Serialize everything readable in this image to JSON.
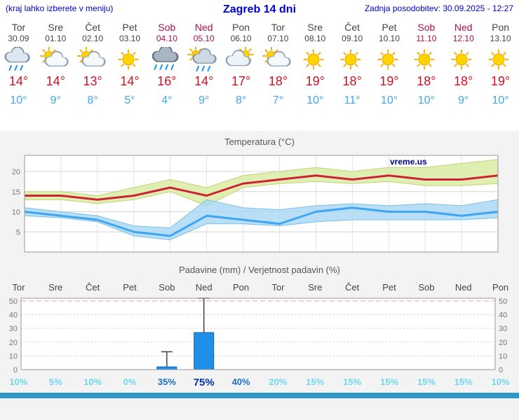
{
  "header": {
    "left": "(kraj lahko izberete v meniju)",
    "title": "Zagreb 14 dni",
    "updated": "Zadnja posodobitev: 30.09.2025 - 12:27"
  },
  "days": [
    {
      "name": "Tor",
      "date": "30.09",
      "weekend": false,
      "icon": "rain",
      "tmax": "14°",
      "tmin": "10°"
    },
    {
      "name": "Sre",
      "date": "01.10",
      "weekend": false,
      "icon": "sun-cloud",
      "tmax": "14°",
      "tmin": "9°"
    },
    {
      "name": "Čet",
      "date": "02.10",
      "weekend": false,
      "icon": "sun-cloud",
      "tmax": "13°",
      "tmin": "8°"
    },
    {
      "name": "Pet",
      "date": "03.10",
      "weekend": false,
      "icon": "sunny",
      "tmax": "14°",
      "tmin": "5°"
    },
    {
      "name": "Sob",
      "date": "04.10",
      "weekend": true,
      "icon": "heavy-rain",
      "tmax": "16°",
      "tmin": "4°"
    },
    {
      "name": "Ned",
      "date": "05.10",
      "weekend": true,
      "icon": "rain-sun",
      "tmax": "14°",
      "tmin": "9°"
    },
    {
      "name": "Pon",
      "date": "06.10",
      "weekend": false,
      "icon": "cloud-sun",
      "tmax": "17°",
      "tmin": "8°"
    },
    {
      "name": "Tor",
      "date": "07.10",
      "weekend": false,
      "icon": "sun-cloud",
      "tmax": "18°",
      "tmin": "7°"
    },
    {
      "name": "Sre",
      "date": "08.10",
      "weekend": false,
      "icon": "sunny",
      "tmax": "19°",
      "tmin": "10°"
    },
    {
      "name": "Čet",
      "date": "09.10",
      "weekend": false,
      "icon": "sunny",
      "tmax": "18°",
      "tmin": "11°"
    },
    {
      "name": "Pet",
      "date": "10.10",
      "weekend": false,
      "icon": "sunny",
      "tmax": "19°",
      "tmin": "10°"
    },
    {
      "name": "Sob",
      "date": "11.10",
      "weekend": true,
      "icon": "sunny",
      "tmax": "18°",
      "tmin": "10°"
    },
    {
      "name": "Ned",
      "date": "12.10",
      "weekend": true,
      "icon": "sunny",
      "tmax": "18°",
      "tmin": "9°"
    },
    {
      "name": "Pon",
      "date": "13.10",
      "weekend": false,
      "icon": "sunny",
      "tmax": "19°",
      "tmin": "10°"
    }
  ],
  "charts": {
    "temp": {
      "title": "Temperatura (°C)",
      "watermark": "vreme.us"
    },
    "precip": {
      "title": "Padavine (mm) / Verjetnost padavin (%)"
    }
  },
  "chart_data": [
    {
      "type": "line",
      "title": "Temperatura (°C)",
      "x": [
        "Tor",
        "Sre",
        "Čet",
        "Pet",
        "Sob",
        "Ned",
        "Pon",
        "Tor",
        "Sre",
        "Čet",
        "Pet",
        "Sob",
        "Ned",
        "Pon"
      ],
      "ylim": [
        0,
        24
      ],
      "yticks": [
        5,
        10,
        15,
        20
      ],
      "series": [
        {
          "name": "max",
          "color": "#cc2233",
          "values": [
            14,
            14,
            13,
            14,
            16,
            14,
            17,
            18,
            19,
            18,
            19,
            18,
            18,
            19
          ]
        },
        {
          "name": "max_range_hi",
          "values": [
            15,
            15,
            14,
            16,
            18,
            16,
            19,
            20,
            21,
            20,
            21,
            21,
            22,
            23
          ]
        },
        {
          "name": "max_range_lo",
          "values": [
            13,
            13,
            12,
            13,
            15,
            11.5,
            16,
            17,
            17.5,
            17,
            17.5,
            16.5,
            16.5,
            17
          ]
        },
        {
          "name": "min",
          "color": "#3fa5f0",
          "values": [
            10,
            9,
            8,
            5,
            4,
            9,
            8,
            7,
            10,
            11,
            10,
            10,
            9,
            10
          ]
        },
        {
          "name": "min_range_hi",
          "values": [
            11,
            10,
            9,
            6.5,
            6,
            13,
            11,
            10.5,
            11.5,
            12,
            11.5,
            12,
            11.5,
            13
          ]
        },
        {
          "name": "min_range_lo",
          "values": [
            9,
            8.5,
            7.5,
            4,
            3,
            7,
            7,
            6.5,
            7.5,
            8,
            8,
            8,
            8,
            8.5
          ]
        }
      ]
    },
    {
      "type": "bar",
      "title": "Padavine (mm) / Verjetnost padavin (%)",
      "categories": [
        "Tor",
        "Sre",
        "Čet",
        "Pet",
        "Sob",
        "Ned",
        "Pon",
        "Tor",
        "Sre",
        "Čet",
        "Pet",
        "Sob",
        "Ned",
        "Pon"
      ],
      "values": [
        0,
        0,
        0,
        0,
        2,
        27,
        0,
        0,
        0,
        0,
        0,
        0,
        0,
        0
      ],
      "range_max": [
        0,
        0,
        0,
        0,
        13,
        52,
        0,
        0,
        0,
        0,
        0,
        0,
        0,
        0
      ],
      "probability": [
        "10%",
        "5%",
        "10%",
        "0%",
        "35%",
        "75%",
        "40%",
        "20%",
        "15%",
        "15%",
        "15%",
        "15%",
        "15%",
        "10%"
      ],
      "ylim": [
        0,
        52
      ],
      "yticks": [
        0,
        10,
        20,
        30,
        40,
        50
      ]
    }
  ],
  "colors": {
    "header": "#0000cc",
    "weekday": "#444444",
    "weekend": "#a81048",
    "tmax": "#cc1122",
    "tmin": "#3fa5f0",
    "bar_fill": "#1f8fe8",
    "bar_border": "#1266ad",
    "prob_low": "#6fd8ef",
    "prob_mid": "#1a6fc4",
    "prob_high": "#0033aa",
    "footer": "#2f97c8"
  }
}
